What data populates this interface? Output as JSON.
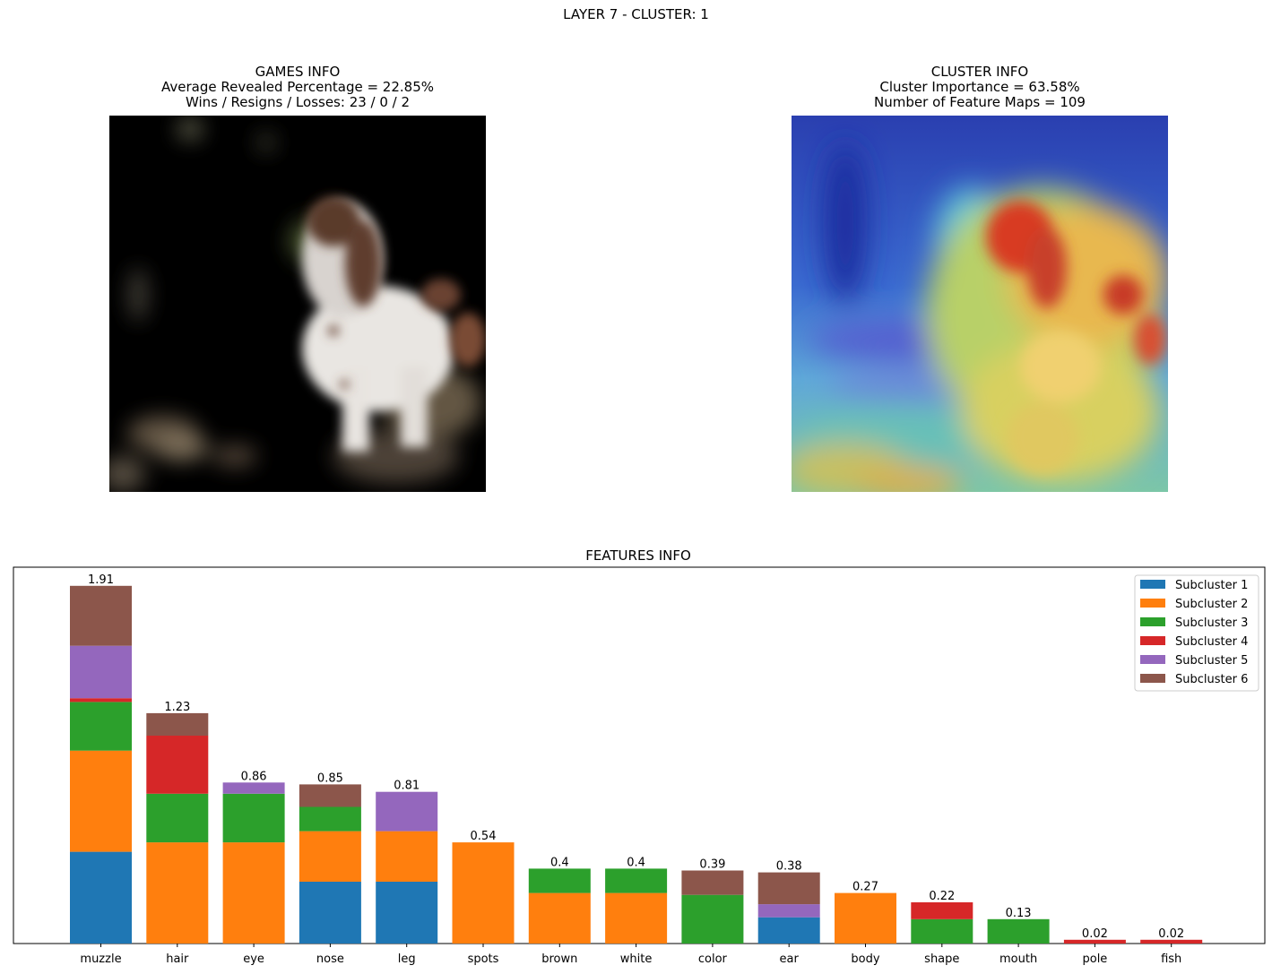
{
  "figure": {
    "suptitle": "LAYER 7 - CLUSTER: 1"
  },
  "games_info": {
    "title": "GAMES INFO",
    "avg_revealed": "Average Revealed Percentage = 22.85%",
    "record": "Wins / Resigns / Losses: 23 / 0 / 2"
  },
  "cluster_info": {
    "title": "CLUSTER INFO",
    "importance": "Cluster Importance = 63.58%",
    "feature_maps": "Number of Feature Maps = 109"
  },
  "chart_data": {
    "type": "bar",
    "stacked": true,
    "title": "FEATURES INFO",
    "xlabel": "",
    "ylabel": "",
    "ylim": [
      0,
      2.0
    ],
    "legend_position": "top-right",
    "categories": [
      "muzzle",
      "hair",
      "eye",
      "nose",
      "leg",
      "spots",
      "brown",
      "white",
      "color",
      "ear",
      "body",
      "shape",
      "mouth",
      "pole",
      "fish"
    ],
    "totals": [
      "1.91",
      "1.23",
      "0.86",
      "0.85",
      "0.81",
      "0.54",
      "0.4",
      "0.4",
      "0.39",
      "0.38",
      "0.27",
      "0.22",
      "0.13",
      "0.02",
      "0.02"
    ],
    "series": [
      {
        "name": "Subcluster 1",
        "color": "#1f77b4",
        "values": [
          0.49,
          0,
          0,
          0.33,
          0.33,
          0,
          0,
          0,
          0,
          0.14,
          0,
          0,
          0,
          0,
          0
        ]
      },
      {
        "name": "Subcluster 2",
        "color": "#ff7f0e",
        "values": [
          0.54,
          0.54,
          0.54,
          0.27,
          0.27,
          0.54,
          0.27,
          0.27,
          0,
          0,
          0.27,
          0,
          0,
          0,
          0
        ]
      },
      {
        "name": "Subcluster 3",
        "color": "#2ca02c",
        "values": [
          0.26,
          0.26,
          0.26,
          0.13,
          0,
          0,
          0.13,
          0.13,
          0.26,
          0,
          0,
          0.13,
          0.13,
          0,
          0
        ]
      },
      {
        "name": "Subcluster 4",
        "color": "#d62728",
        "values": [
          0.02,
          0.31,
          0,
          0,
          0,
          0,
          0,
          0,
          0,
          0,
          0,
          0.09,
          0,
          0.02,
          0.02
        ]
      },
      {
        "name": "Subcluster 5",
        "color": "#9467bd",
        "values": [
          0.28,
          0,
          0.06,
          0,
          0.21,
          0,
          0,
          0,
          0,
          0.07,
          0,
          0,
          0,
          0,
          0
        ]
      },
      {
        "name": "Subcluster 6",
        "color": "#8c564b",
        "values": [
          0.32,
          0.12,
          0,
          0.12,
          0,
          0,
          0,
          0,
          0.13,
          0.17,
          0,
          0,
          0,
          0,
          0
        ]
      }
    ]
  }
}
